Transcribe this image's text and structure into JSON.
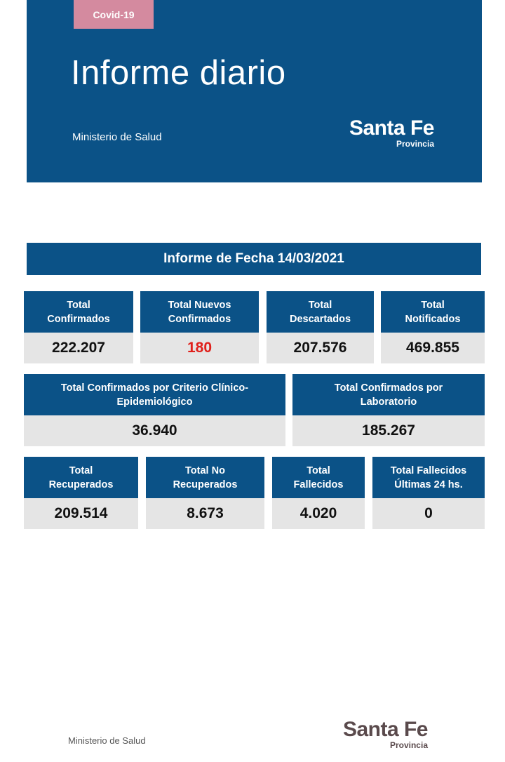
{
  "header": {
    "tag": "Covid-19",
    "title": "Informe diario",
    "ministry": "Ministerio de Salud",
    "logo_name": "Santa Fe",
    "logo_sub": "Provincia"
  },
  "report": {
    "title": "Informe de Fecha 14/03/2021"
  },
  "row1": [
    {
      "label1": "Total",
      "label2": "Confirmados",
      "value": "222.207"
    },
    {
      "label1": "Total Nuevos",
      "label2": "Confirmados",
      "value": "180",
      "value_color": "#e0201b"
    },
    {
      "label1": "Total",
      "label2": "Descartados",
      "value": "207.576"
    },
    {
      "label1": "Total",
      "label2": "Notificados",
      "value": "469.855"
    }
  ],
  "row2": [
    {
      "label1": "Total Confirmados por Criterio Clínico-",
      "label2": "Epidemiológico",
      "value": "36.940"
    },
    {
      "label1": "Total Confirmados por",
      "label2": "Laboratorio",
      "value": "185.267"
    }
  ],
  "row3": [
    {
      "label1": "Total",
      "label2": "Recuperados",
      "value": "209.514"
    },
    {
      "label1": "Total No",
      "label2": "Recuperados",
      "value": "8.673"
    },
    {
      "label1": "Total",
      "label2": "Fallecidos",
      "value": "4.020"
    },
    {
      "label1": "Total Fallecidos",
      "label2": "Últimas 24 hs.",
      "value": "0"
    }
  ],
  "footer": {
    "ministry": "Ministerio de Salud",
    "logo_name": "Santa Fe",
    "logo_sub": "Provincia"
  },
  "colors": {
    "primary": "#0b5287",
    "tag": "#d48a9f",
    "value_bg": "#e5e5e5",
    "highlight": "#e0201b"
  }
}
